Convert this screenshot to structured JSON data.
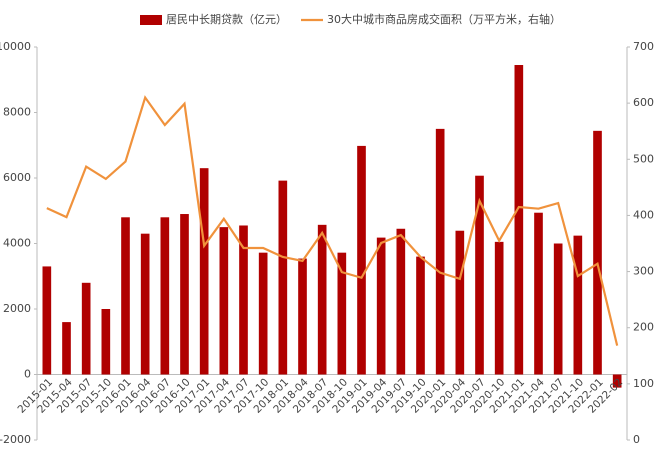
{
  "chart_data": {
    "type": "bar_line",
    "categories": [
      "2015-01",
      "2015-04",
      "2015-07",
      "2015-10",
      "2016-01",
      "2016-04",
      "2016-07",
      "2016-10",
      "2017-01",
      "2017-04",
      "2017-07",
      "2017-10",
      "2018-01",
      "2018-04",
      "2018-07",
      "2018-10",
      "2019-01",
      "2019-04",
      "2019-07",
      "2019-10",
      "2020-01",
      "2020-04",
      "2020-07",
      "2020-10",
      "2021-01",
      "2021-04",
      "2021-07",
      "2021-10",
      "2022-01",
      "2022-02"
    ],
    "series": [
      {
        "name": "居民中长期贷款（亿元）",
        "type": "bar",
        "color": "#b00000",
        "axis": "y",
        "values": [
          3300,
          1600,
          2800,
          2000,
          4800,
          4300,
          4800,
          4900,
          6300,
          4500,
          4550,
          3720,
          5920,
          3540,
          4570,
          3720,
          6980,
          4180,
          4450,
          3600,
          7500,
          4390,
          6070,
          4050,
          9450,
          4940,
          4000,
          4240,
          7440,
          -400
        ]
      },
      {
        "name": "30大中城市商品房成交面积（万平方米，右轴）",
        "type": "line",
        "color": "#f0923c",
        "axis": "y2",
        "values": [
          413,
          397,
          487,
          465,
          496,
          610,
          561,
          599,
          346,
          394,
          342,
          342,
          326,
          319,
          369,
          299,
          289,
          351,
          365,
          326,
          298,
          287,
          426,
          355,
          415,
          412,
          422,
          292,
          314,
          168
        ]
      }
    ],
    "ylim": [
      -2000,
      10000
    ],
    "yticks": [
      -2000,
      0,
      2000,
      4000,
      6000,
      8000,
      10000
    ],
    "y2lim": [
      0,
      700
    ],
    "y2ticks": [
      0,
      100,
      200,
      300,
      400,
      500,
      600,
      700
    ]
  }
}
